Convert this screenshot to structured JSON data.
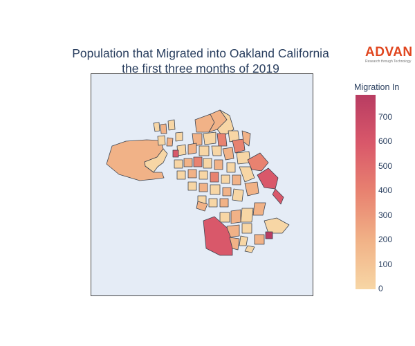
{
  "title": {
    "line1": "Population that Migrated into Oakland California",
    "line2": "the first three months of 2019"
  },
  "logo": {
    "word": "ADVAN",
    "tagline": "Research through Technology"
  },
  "colorbar": {
    "title": "Migration In",
    "ticks": [
      "0",
      "100",
      "200",
      "300",
      "400",
      "500",
      "600",
      "700"
    ],
    "range": [
      0,
      790
    ],
    "colors": [
      "#f7d6a5",
      "#f1b287",
      "#e88270",
      "#d9586a",
      "#b83c62"
    ]
  },
  "map": {
    "background": "#e5ecf6",
    "border_color": "#3b4350"
  }
}
